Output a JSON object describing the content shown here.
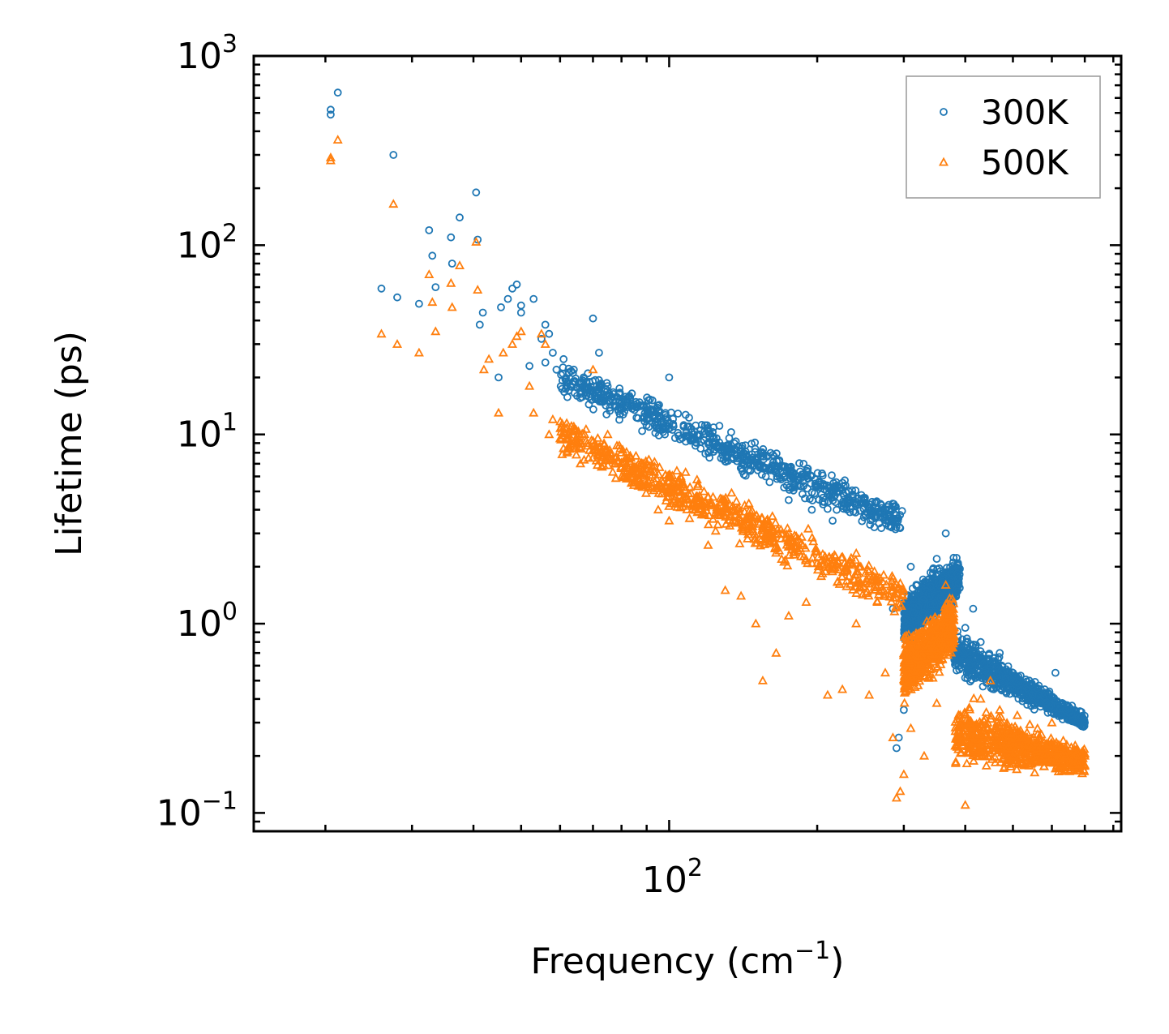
{
  "chart_data": {
    "type": "scatter",
    "title": "",
    "xlabel": {
      "base": "Frequency (cm",
      "sup": "−1",
      "end": ")"
    },
    "ylabel": "Lifetime (ps)",
    "xscale": "log",
    "yscale": "log",
    "xlim": [
      14.3,
      830
    ],
    "ylim": [
      0.08,
      1000
    ],
    "x_ticks": [
      {
        "value": 100,
        "base": "10",
        "exp": "2"
      }
    ],
    "y_ticks": [
      {
        "value": 0.1,
        "base": "10",
        "exp": "−1"
      },
      {
        "value": 1,
        "base": "10",
        "exp": "0"
      },
      {
        "value": 10,
        "base": "10",
        "exp": "1"
      },
      {
        "value": 100,
        "base": "10",
        "exp": "2"
      },
      {
        "value": 1000,
        "base": "10",
        "exp": "3"
      }
    ],
    "legend": {
      "position": "top-right",
      "frame": true
    },
    "series": [
      {
        "name": "300K",
        "marker": "circle",
        "color": "#1f77b4",
        "points": [
          [
            20.5,
            520
          ],
          [
            20.5,
            490
          ],
          [
            21.2,
            640
          ],
          [
            27.5,
            300
          ],
          [
            26.0,
            59
          ],
          [
            28.0,
            53
          ],
          [
            31,
            49
          ],
          [
            32.5,
            120
          ],
          [
            33,
            88
          ],
          [
            33.5,
            60
          ],
          [
            36,
            110
          ],
          [
            36.2,
            80
          ],
          [
            37.5,
            140
          ],
          [
            40.5,
            190
          ],
          [
            40.8,
            107
          ],
          [
            41.2,
            38
          ],
          [
            41.8,
            44
          ],
          [
            45,
            20
          ],
          [
            45.5,
            47
          ],
          [
            47,
            52
          ],
          [
            48,
            59
          ],
          [
            49,
            62
          ],
          [
            50,
            48
          ],
          [
            50,
            44
          ],
          [
            52,
            23
          ],
          [
            53,
            52
          ],
          [
            55,
            32
          ],
          [
            56,
            38
          ],
          [
            56,
            24
          ],
          [
            57,
            34
          ],
          [
            58,
            27
          ],
          [
            59,
            22
          ],
          [
            61,
            25
          ],
          [
            62,
            18
          ],
          [
            64,
            22
          ],
          [
            65,
            16
          ],
          [
            67,
            20
          ],
          [
            70,
            41
          ],
          [
            72,
            27
          ],
          [
            75,
            18
          ],
          [
            78,
            14
          ],
          [
            83,
            16
          ],
          [
            90,
            12
          ],
          [
            98,
            10
          ],
          [
            100,
            20
          ],
          [
            107,
            11
          ],
          [
            115,
            10
          ],
          [
            130,
            7.2
          ],
          [
            145,
            6.5
          ],
          [
            160,
            5.6
          ],
          [
            175,
            4.5
          ],
          [
            180,
            5.4
          ],
          [
            195,
            4.0
          ],
          [
            215,
            3.5
          ],
          [
            230,
            4.5
          ],
          [
            250,
            3.8
          ],
          [
            270,
            3.2
          ],
          [
            285,
            1.2
          ],
          [
            290,
            0.22
          ],
          [
            293,
            0.25
          ],
          [
            300,
            0.35
          ],
          [
            310,
            2.0
          ],
          [
            330,
            1.6
          ],
          [
            350,
            2.2
          ],
          [
            365,
            3.0
          ],
          [
            370,
            0.9
          ],
          [
            400,
            0.95
          ],
          [
            415,
            1.2
          ],
          [
            430,
            0.8
          ],
          [
            470,
            0.7
          ],
          [
            500,
            0.55
          ],
          [
            540,
            0.5
          ],
          [
            580,
            0.45
          ],
          [
            610,
            0.55
          ],
          [
            640,
            0.35
          ],
          [
            680,
            0.32
          ],
          [
            700,
            0.3
          ]
        ],
        "bands": [
          {
            "x": [
              60,
              300
            ],
            "y_lo": [
              15,
              2.6
            ],
            "y_hi": [
              26,
              4.5
            ]
          },
          {
            "x": [
              300,
              390
            ],
            "y_lo": [
              0.7,
              1.2
            ],
            "y_hi": [
              1.6,
              2.6
            ]
          },
          {
            "x": [
              380,
              700
            ],
            "y_lo": [
              0.5,
              0.27
            ],
            "y_hi": [
              1.0,
              0.34
            ]
          }
        ]
      },
      {
        "name": "500K",
        "marker": "triangle",
        "color": "#ff7f0e",
        "points": [
          [
            20.5,
            290
          ],
          [
            20.5,
            280
          ],
          [
            21.2,
            360
          ],
          [
            27.5,
            165
          ],
          [
            26.0,
            34
          ],
          [
            28.0,
            30
          ],
          [
            31,
            27
          ],
          [
            32.5,
            70
          ],
          [
            33,
            50
          ],
          [
            33.5,
            35
          ],
          [
            36,
            63
          ],
          [
            36.2,
            47
          ],
          [
            37.5,
            78
          ],
          [
            40.5,
            104
          ],
          [
            40.8,
            58
          ],
          [
            42,
            22
          ],
          [
            43,
            25
          ],
          [
            45,
            13
          ],
          [
            46,
            27
          ],
          [
            48,
            30
          ],
          [
            49,
            33
          ],
          [
            50,
            35
          ],
          [
            52,
            18
          ],
          [
            53,
            13
          ],
          [
            55,
            34
          ],
          [
            56,
            30
          ],
          [
            57,
            10
          ],
          [
            58,
            12
          ],
          [
            60,
            9.5
          ],
          [
            62,
            8
          ],
          [
            64,
            11
          ],
          [
            66,
            7
          ],
          [
            70,
            22
          ],
          [
            75,
            10
          ],
          [
            80,
            8
          ],
          [
            90,
            5.5
          ],
          [
            95,
            4.0
          ],
          [
            100,
            3.5
          ],
          [
            110,
            3.6
          ],
          [
            120,
            2.6
          ],
          [
            130,
            1.5
          ],
          [
            140,
            1.4
          ],
          [
            150,
            1.0
          ],
          [
            155,
            0.5
          ],
          [
            165,
            0.7
          ],
          [
            175,
            1.1
          ],
          [
            190,
            1.3
          ],
          [
            210,
            0.42
          ],
          [
            225,
            0.45
          ],
          [
            240,
            1.0
          ],
          [
            255,
            0.42
          ],
          [
            265,
            1.3
          ],
          [
            275,
            0.55
          ],
          [
            285,
            0.25
          ],
          [
            290,
            0.12
          ],
          [
            295,
            0.13
          ],
          [
            300,
            0.16
          ],
          [
            310,
            0.28
          ],
          [
            330,
            0.2
          ],
          [
            350,
            0.38
          ],
          [
            365,
            1.6
          ],
          [
            400,
            0.11
          ],
          [
            410,
            0.3
          ],
          [
            430,
            0.4
          ],
          [
            450,
            0.5
          ],
          [
            470,
            0.35
          ],
          [
            500,
            0.2
          ],
          [
            530,
            0.25
          ],
          [
            560,
            0.22
          ],
          [
            600,
            0.3
          ],
          [
            640,
            0.2
          ],
          [
            680,
            0.18
          ],
          [
            700,
            0.2
          ]
        ],
        "bands": [
          {
            "x": [
              60,
              300
            ],
            "y_lo": [
              7,
              1.0
            ],
            "y_hi": [
              14,
              1.9
            ]
          },
          {
            "x": [
              300,
              380
            ],
            "y_lo": [
              0.35,
              0.65
            ],
            "y_hi": [
              0.9,
              1.5
            ]
          },
          {
            "x": [
              380,
              700
            ],
            "y_lo": [
              0.16,
              0.15
            ],
            "y_hi": [
              0.45,
              0.24
            ]
          }
        ]
      }
    ]
  }
}
